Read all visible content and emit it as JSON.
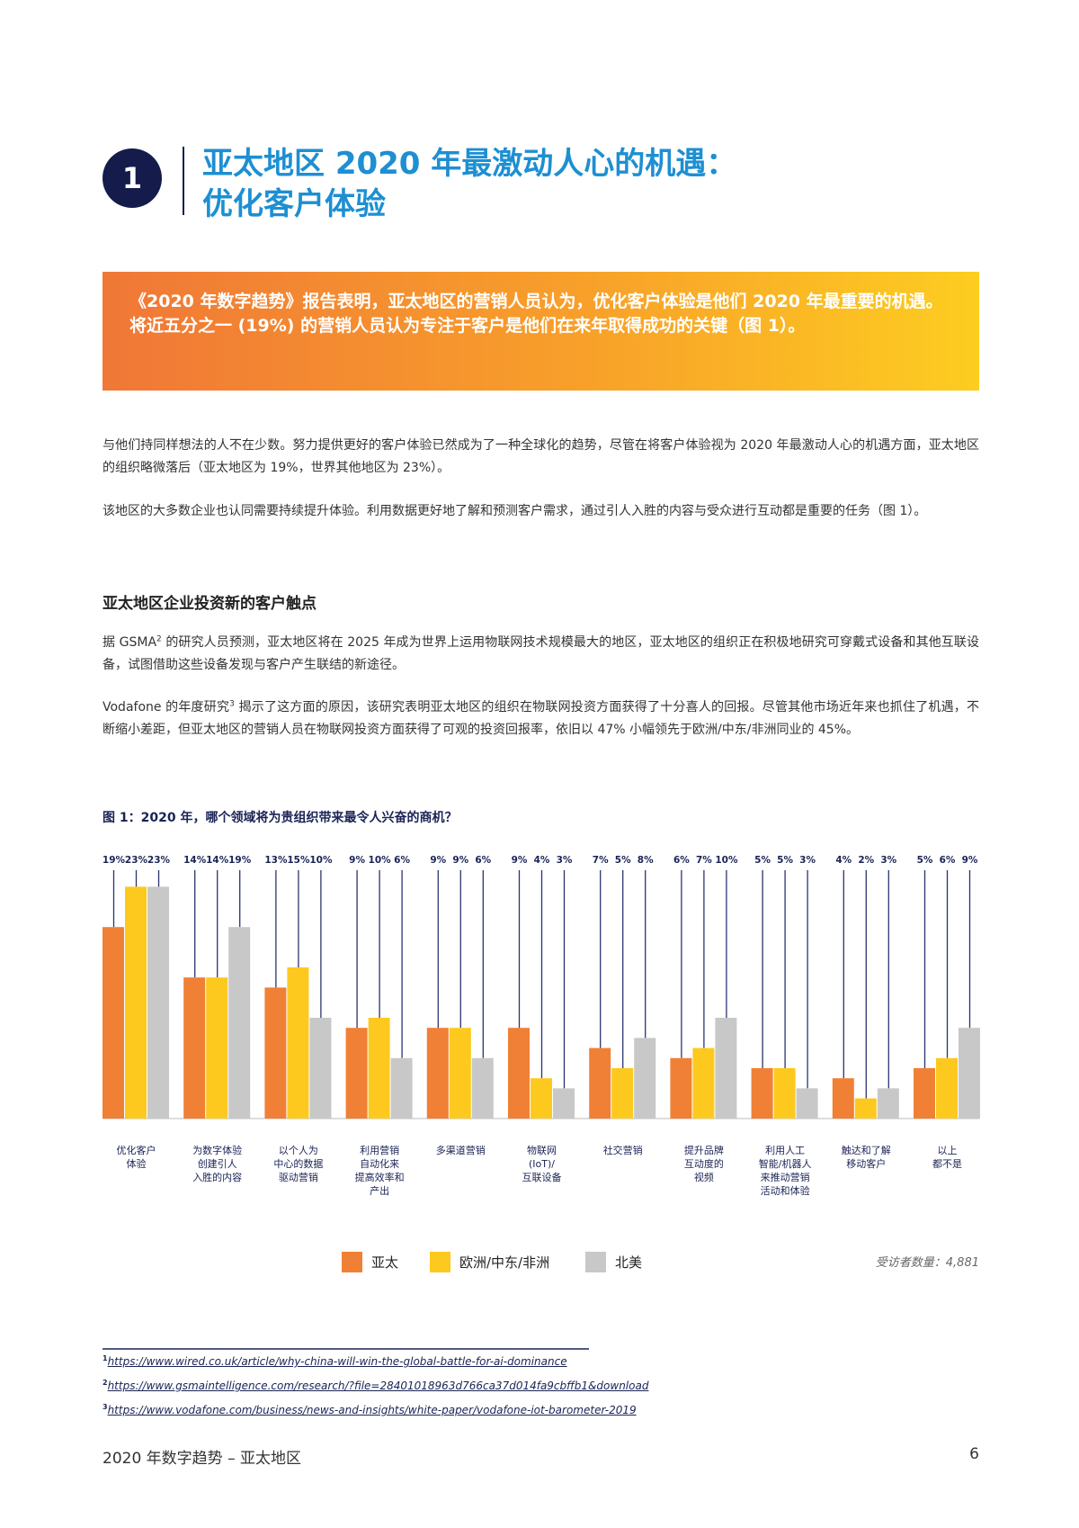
{
  "header": {
    "number": "1",
    "title_lines": [
      "亚太地区 2020 年最激动人心的机遇：",
      "优化客户体验"
    ]
  },
  "highlight": "《2020 年数字趋势》报告表明，亚太地区的营销人员认为，优化客户体验是他们 2020 年最重要的机遇。将近五分之一 (19%) 的营销人员认为专注于客户是他们在来年取得成功的关键（图 1）。",
  "intro_paragraphs": [
    "与他们持同样想法的人不在少数。努力提供更好的客户体验已然成为了一种全球化的趋势，尽管在将客户体验视为 2020 年最激动人心的机遇方面，亚太地区的组织略微落后（亚太地区为 19%，世界其他地区为 23%）。",
    "该地区的大多数企业也认同需要持续提升体验。利用数据更好地了解和预测客户需求，通过引人入胜的内容与受众进行互动都是重要的任务（图 1）。"
  ],
  "section_heading": "亚太地区企业投资新的客户触点",
  "section_paragraphs": [
    [
      "据 GSMA",
      "2",
      " 的研究人员预测，亚太地区将在 2025 年成为世界上运用物联网技术规模最大的地区，亚太地区的组织正在积极地研究可穿戴式设备和其他互联设备，试图借助这些设备发现与客户产生联结的新途径。"
    ],
    [
      "Vodafone 的年度研究",
      "3",
      " 揭示了这方面的原因，该研究表明亚太地区的组织在物联网投资方面获得了十分喜人的回报。尽管其他市场近年来也抓住了机遇，不断缩小差距，但亚太地区的营销人员在物联网投资方面获得了可观的投资回报率，依旧以 47% 小幅领先于欧洲/中东/非洲同业的 45%。"
    ]
  ],
  "chart_data": {
    "type": "bar",
    "title": "图 1：2020 年，哪个领域将为贵组织带来最令人兴奋的商机？",
    "categories": [
      "优化客户\n体验",
      "为数字体验\n创建引人\n入胜的内容",
      "以个人为\n中心的数据\n驱动营销",
      "利用营销\n自动化来\n提高效率和\n产出",
      "多渠道营销",
      "物联网\n(IoT)/\n互联设备",
      "社交营销",
      "提升品牌\n互动度的\n视频",
      "利用人工\n智能/机器人\n来推动营销\n活动和体验",
      "触达和了解\n移动客户",
      "以上\n都不是"
    ],
    "series": [
      {
        "name": "亚太",
        "color": "#f08036",
        "values": [
          19,
          14,
          13,
          9,
          9,
          9,
          7,
          6,
          5,
          4,
          5
        ],
        "value_labels": [
          "19%",
          "14%",
          "13%",
          "9%",
          "9%",
          "9%",
          "7%",
          "6%",
          "5%",
          "4%",
          "5%"
        ]
      },
      {
        "name": "欧洲/中东/非洲",
        "color": "#fdc91f",
        "values": [
          23,
          14,
          15,
          10,
          9,
          4,
          5,
          7,
          5,
          2,
          6
        ],
        "value_labels": [
          "23%",
          "14%",
          "15%",
          "10%",
          "9%",
          "4%",
          "5%",
          "7%",
          "5%",
          "2%",
          "6%"
        ]
      },
      {
        "name": "北美",
        "color": "#c8c8c8",
        "values": [
          23,
          19,
          10,
          6,
          6,
          3,
          8,
          10,
          3,
          3,
          9
        ],
        "value_labels": [
          "23%",
          "19%",
          "10%",
          "6%",
          "6%",
          "3%",
          "8%",
          "10%",
          "3%",
          "3%",
          "9%"
        ]
      }
    ],
    "note": "受访者数量：4,881"
  },
  "footnotes": [
    {
      "mark": "1",
      "url": "https://www.wired.co.uk/article/why-china-will-win-the-global-battle-for-ai-dominance"
    },
    {
      "mark": "2",
      "url": "https://www.gsmaintelligence.com/research/?file=28401018963d766ca37d014fa9cbffb1&download"
    },
    {
      "mark": "3",
      "url": "https://www.vodafone.com/business/news-and-insights/white-paper/vodafone-iot-barometer-2019"
    }
  ],
  "footer": {
    "left": "2020 年数字趋势 – 亚太地区",
    "page": "6"
  }
}
